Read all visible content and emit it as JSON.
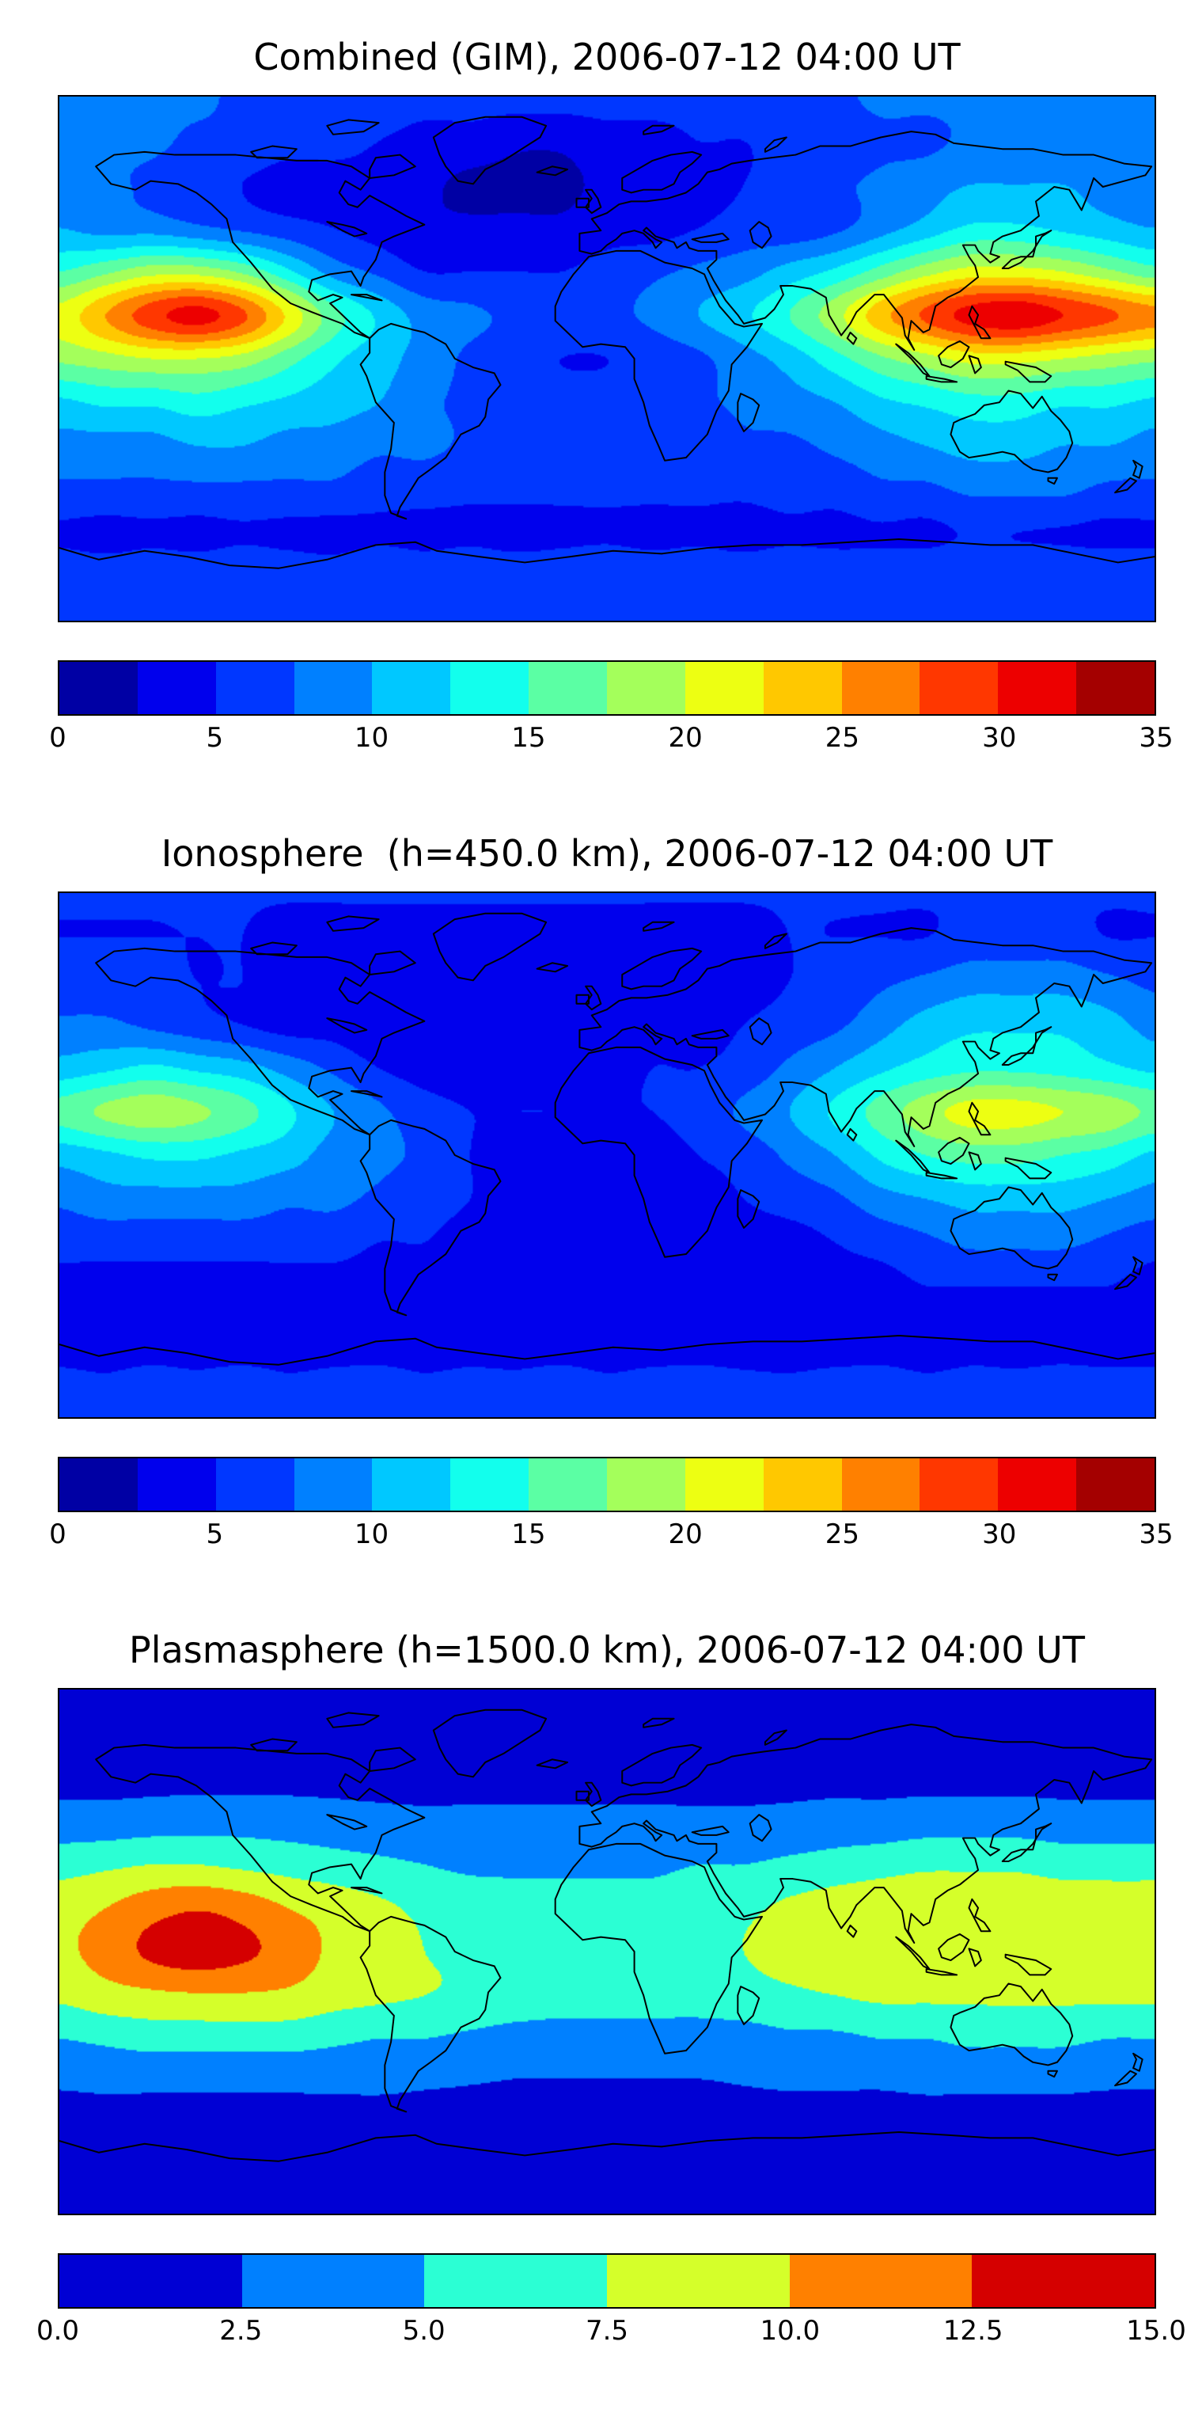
{
  "figure": {
    "background": "#ffffff",
    "map_border_color": "#000000"
  },
  "chart_data": [
    {
      "type": "heatmap",
      "title": "Combined (GIM), 2006-07-12 04:00 UT",
      "colormap": "jet",
      "levels": {
        "min": 0,
        "max": 35,
        "step": 2.5
      },
      "colorbar_ticks": [
        "0",
        "5",
        "10",
        "15",
        "20",
        "25",
        "30",
        "35"
      ],
      "grid": {
        "lon_min": -180,
        "lon_max": 180,
        "lat_max": 90,
        "lat_min": -90,
        "lon_step": 15,
        "lat_step": 15,
        "row_order": "lat +90 to -90"
      },
      "values": [
        [
          8,
          8,
          8,
          8,
          7,
          7,
          7,
          7,
          6,
          6,
          6,
          6,
          6,
          6,
          6,
          7,
          7,
          7,
          8,
          8,
          8,
          8,
          8,
          8,
          8
        ],
        [
          8,
          8,
          8,
          7,
          7,
          6,
          6,
          5,
          4,
          4,
          3,
          3,
          4,
          4,
          5,
          5,
          6,
          6,
          7,
          7,
          8,
          8,
          8,
          8,
          8
        ],
        [
          8,
          8,
          7,
          6,
          5,
          4,
          4,
          4,
          3,
          2,
          2,
          2,
          3,
          3,
          4,
          5,
          6,
          7,
          8,
          9,
          10,
          10,
          10,
          9,
          8
        ],
        [
          10,
          9,
          9,
          8,
          7,
          6,
          5,
          4,
          3,
          3,
          3,
          3,
          4,
          4,
          5,
          6,
          6,
          7,
          9,
          11,
          13,
          13,
          12,
          11,
          10
        ],
        [
          15,
          17,
          19,
          19,
          17,
          13,
          9,
          7,
          5,
          5,
          5,
          5,
          6,
          7,
          8,
          9,
          11,
          13,
          16,
          19,
          21,
          21,
          20,
          18,
          16
        ],
        [
          21,
          25,
          29,
          31,
          28,
          22,
          16,
          12,
          9,
          8,
          7,
          7,
          7,
          8,
          10,
          12,
          15,
          19,
          24,
          28,
          31,
          32,
          30,
          28,
          26
        ],
        [
          18,
          19,
          20,
          20,
          19,
          16,
          13,
          11,
          9,
          7,
          6,
          5,
          5,
          6,
          7,
          9,
          11,
          14,
          17,
          19,
          21,
          21,
          20,
          19,
          18
        ],
        [
          12,
          13,
          13,
          14,
          13,
          12,
          11,
          10,
          8,
          7,
          6,
          6,
          6,
          6,
          7,
          8,
          9,
          10,
          12,
          13,
          14,
          14,
          13,
          13,
          12
        ],
        [
          9,
          9,
          9,
          10,
          10,
          9,
          9,
          8,
          8,
          7,
          6,
          6,
          6,
          6,
          6,
          7,
          7,
          8,
          9,
          10,
          11,
          11,
          10,
          10,
          9
        ],
        [
          7,
          7,
          7,
          7,
          7,
          7,
          7,
          6,
          6,
          5.5,
          5.5,
          5.5,
          5.5,
          5.5,
          5.5,
          5.5,
          6,
          6,
          7,
          7,
          8,
          8,
          8,
          7,
          7
        ],
        [
          4.6,
          4.2,
          4.5,
          4.3,
          4.7,
          4.4,
          4.2,
          4.6,
          4.3,
          4.5,
          4.2,
          4.4,
          4.6,
          4.3,
          4.5,
          4.2,
          4.6,
          4.4,
          4.7,
          4.5,
          5.2,
          5.0,
          4.8,
          4.5,
          4.6
        ],
        [
          6.5,
          6.3,
          6.6,
          6.4,
          6.7,
          6.5,
          6.2,
          6.6,
          6.4,
          6.6,
          6.3,
          6.5,
          6.7,
          6.4,
          6.6,
          6.3,
          6.6,
          6.5,
          6.2,
          6.6,
          6.7,
          6.4,
          6.6,
          6.5,
          6.5
        ],
        [
          6.5,
          6.5,
          6.5,
          6.5,
          6.5,
          6.5,
          6.5,
          6.5,
          6.5,
          6.5,
          6.5,
          6.5,
          6.5,
          6.5,
          6.5,
          6.5,
          6.5,
          6.5,
          6.5,
          6.5,
          6.5,
          6.5,
          6.5,
          6.5,
          6.5
        ]
      ]
    },
    {
      "type": "heatmap",
      "title": "Ionosphere  (h=450.0 km), 2006-07-12 04:00 UT",
      "colormap": "jet",
      "levels": {
        "min": 0,
        "max": 35,
        "step": 2.5
      },
      "colorbar_ticks": [
        "0",
        "5",
        "10",
        "15",
        "20",
        "25",
        "30",
        "35"
      ],
      "grid": {
        "lon_min": -180,
        "lon_max": 180,
        "lat_max": 90,
        "lat_min": -90,
        "lon_step": 15,
        "lat_step": 15,
        "row_order": "lat +90 to -90"
      },
      "values": [
        [
          5.2,
          5.2,
          5.2,
          5.2,
          5.2,
          5.2,
          5.2,
          5.2,
          5.2,
          5.2,
          5.2,
          5.2,
          5.2,
          5.2,
          5.2,
          5.2,
          5.2,
          5.2,
          5.2,
          5.2,
          5.2,
          5.2,
          5.2,
          5.2,
          5.2
        ],
        [
          5,
          5,
          5,
          5,
          5,
          4,
          4,
          4,
          4,
          4,
          4,
          4,
          4,
          4,
          4,
          4,
          5,
          5,
          5,
          5,
          6,
          6,
          6,
          5,
          5
        ],
        [
          6,
          6,
          6,
          5,
          5,
          4,
          4,
          3,
          3,
          3,
          3,
          3,
          3,
          4,
          4,
          4,
          5,
          6,
          7,
          8,
          9,
          9,
          9,
          8,
          7
        ],
        [
          8,
          8,
          7,
          6,
          5,
          4,
          4,
          3,
          3,
          3,
          3,
          3,
          3,
          4,
          4,
          5,
          6,
          7,
          9,
          11,
          12,
          12,
          12,
          11,
          9
        ],
        [
          11,
          12,
          13,
          12,
          11,
          9,
          7,
          5,
          4,
          4,
          4,
          4,
          4,
          5,
          5,
          6,
          8,
          10,
          12,
          13.5,
          14.5,
          14.5,
          14,
          13,
          12
        ],
        [
          16,
          18,
          19,
          18,
          16,
          13,
          10,
          8,
          6,
          5,
          5,
          5,
          5,
          5,
          6,
          8,
          10,
          13,
          16,
          19,
          21,
          21,
          20,
          19,
          17
        ],
        [
          11,
          12,
          13,
          13,
          12,
          11,
          9,
          8,
          7,
          5,
          4,
          4,
          4,
          4,
          5,
          6,
          8,
          10,
          13,
          15,
          16,
          16,
          15,
          14,
          12
        ],
        [
          8,
          9,
          9,
          9,
          9,
          8,
          8,
          7,
          6,
          5,
          4,
          4,
          4,
          4,
          4,
          5,
          6,
          7,
          9,
          10,
          11,
          11,
          11,
          10,
          9
        ],
        [
          6,
          6,
          6,
          6,
          6,
          6,
          6,
          5,
          5,
          4,
          4,
          3,
          3,
          3,
          4,
          4,
          4,
          5,
          6,
          7,
          8,
          8,
          8,
          7,
          6
        ],
        [
          4,
          4,
          4,
          4,
          4,
          4,
          4,
          4,
          4,
          3,
          3,
          3,
          3,
          3,
          3,
          3,
          3,
          4,
          4,
          5,
          5,
          5,
          5,
          5,
          4
        ],
        [
          3,
          3,
          3,
          3,
          3,
          3,
          3,
          3,
          3,
          3,
          3,
          3,
          3,
          3,
          3,
          3,
          3,
          3,
          3,
          3,
          3.6,
          3.6,
          3.4,
          3,
          3
        ],
        [
          5.2,
          5.0,
          5.3,
          5.1,
          5.3,
          5.0,
          5.2,
          5.3,
          5.0,
          5.2,
          5.1,
          5.3,
          5.0,
          5.2,
          5.3,
          5.1,
          5.0,
          5.2,
          5.3,
          5.0,
          5.2,
          5.1,
          5.3,
          5.2,
          5.2
        ],
        [
          5.2,
          5.2,
          5.2,
          5.2,
          5.2,
          5.2,
          5.2,
          5.2,
          5.2,
          5.2,
          5.2,
          5.2,
          5.2,
          5.2,
          5.2,
          5.2,
          5.2,
          5.2,
          5.2,
          5.2,
          5.2,
          5.2,
          5.2,
          5.2,
          5.2
        ]
      ]
    },
    {
      "type": "heatmap",
      "title": "Plasmasphere (h=1500.0 km), 2006-07-12 04:00 UT",
      "colormap": "jet",
      "levels": {
        "min": 0,
        "max": 15,
        "step": 2.5
      },
      "colorbar_ticks": [
        "0.0",
        "2.5",
        "5.0",
        "7.5",
        "10.0",
        "12.5",
        "15.0"
      ],
      "grid": {
        "lon_min": -180,
        "lon_max": 180,
        "lat_max": 90,
        "lat_min": -90,
        "lon_step": 15,
        "lat_step": 15,
        "row_order": "lat +90 to -90"
      },
      "values": [
        [
          1.2,
          1.2,
          1.2,
          1.2,
          1.2,
          1.2,
          1.2,
          1.2,
          1.2,
          1.2,
          1.2,
          1.2,
          1.2,
          1.2,
          1.2,
          1.2,
          1.2,
          1.2,
          1.2,
          1.2,
          1.2,
          1.2,
          1.2,
          1.2,
          1.2
        ],
        [
          1.2,
          1.2,
          1.2,
          1.2,
          1.2,
          1.2,
          1.2,
          1.2,
          1.2,
          1.2,
          1.2,
          1.2,
          1.2,
          1.2,
          1.2,
          1.2,
          1.2,
          1.2,
          1.2,
          1.2,
          1.2,
          1.2,
          1.2,
          1.2,
          1.2
        ],
        [
          1.8,
          1.8,
          1.8,
          1.8,
          1.8,
          1.8,
          1.8,
          1.8,
          1.8,
          1.8,
          1.8,
          1.8,
          1.8,
          1.8,
          1.8,
          1.8,
          1.8,
          1.8,
          1.8,
          1.8,
          1.8,
          1.8,
          1.8,
          1.8,
          1.8
        ],
        [
          3.5,
          3.5,
          3.8,
          4,
          4,
          3.8,
          3.5,
          3.2,
          3,
          3,
          3,
          3,
          3,
          3,
          3,
          3,
          3.2,
          3.5,
          3.5,
          3.8,
          3.8,
          3.8,
          3.5,
          3.5,
          3.5
        ],
        [
          6.5,
          7,
          7.5,
          7.5,
          7,
          6.5,
          6,
          5.5,
          5,
          4.5,
          4.5,
          4.5,
          4.5,
          4.5,
          5,
          5,
          5.5,
          6,
          6.5,
          7,
          7,
          7,
          6.5,
          6.5,
          6.5
        ],
        [
          9,
          10,
          11.5,
          12.3,
          11.5,
          10,
          9,
          8,
          7,
          6.5,
          6,
          6,
          6,
          6,
          6.5,
          7,
          8,
          8.8,
          9.3,
          9.6,
          9.6,
          9.3,
          9,
          8.8,
          8.8
        ],
        [
          9.5,
          11,
          13,
          13.8,
          13,
          11.5,
          9.5,
          8.5,
          7.5,
          7,
          6.5,
          6.5,
          6.5,
          6.5,
          7,
          7.5,
          8.5,
          9.3,
          9.6,
          9.6,
          9.6,
          9.4,
          9.2,
          9,
          9
        ],
        [
          8,
          9,
          9.5,
          9.8,
          9.8,
          9.5,
          8.5,
          8,
          7.5,
          7,
          6.5,
          6,
          6,
          6,
          6,
          6.5,
          7,
          7.5,
          8,
          8,
          8,
          8,
          8,
          8,
          8
        ],
        [
          5,
          5.5,
          6,
          6,
          6,
          6,
          5.5,
          5,
          5,
          4.5,
          4,
          4,
          4,
          4,
          4,
          4,
          4.5,
          4.5,
          5,
          5,
          5.5,
          5.5,
          5.5,
          5,
          5
        ],
        [
          2.8,
          3,
          3,
          3,
          3,
          3,
          3,
          3,
          2.8,
          2.6,
          2.4,
          2.4,
          2.4,
          2.4,
          2.4,
          2.6,
          2.8,
          2.8,
          2.8,
          3,
          3,
          3,
          3,
          2.8,
          2.8
        ],
        [
          1.5,
          1.5,
          1.5,
          1.5,
          1.5,
          1.5,
          1.5,
          1.5,
          1.5,
          1.5,
          1.5,
          1.5,
          1.5,
          1.5,
          1.5,
          1.5,
          1.5,
          1.5,
          1.5,
          1.5,
          1.5,
          1.5,
          1.5,
          1.5,
          1.5
        ],
        [
          1,
          1,
          1,
          1,
          1,
          1,
          1,
          1,
          1,
          1,
          1,
          1,
          1,
          1,
          1,
          1,
          1,
          1,
          1,
          1,
          1,
          1,
          1,
          1,
          1
        ],
        [
          1,
          1,
          1,
          1,
          1,
          1,
          1,
          1,
          1,
          1,
          1,
          1,
          1,
          1,
          1,
          1,
          1,
          1,
          1,
          1,
          1,
          1,
          1,
          1,
          1
        ]
      ]
    }
  ]
}
